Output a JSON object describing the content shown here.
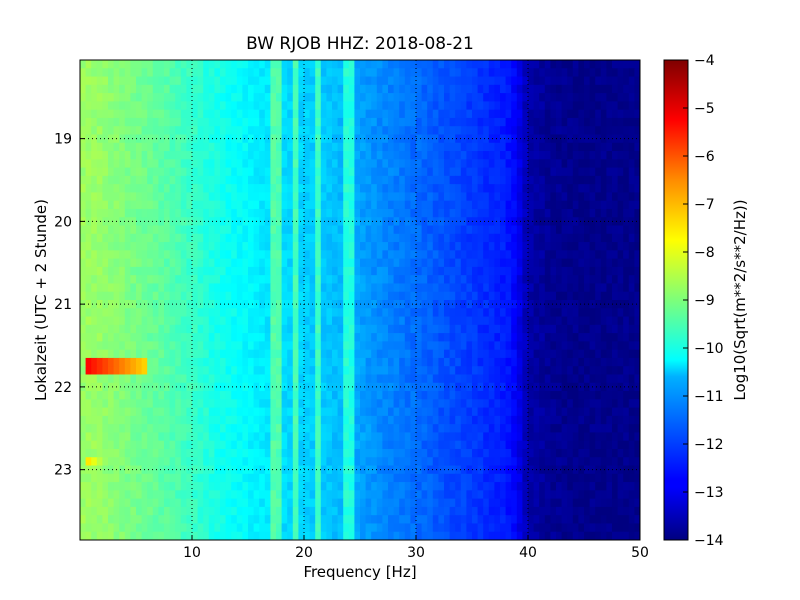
{
  "chart_data": {
    "type": "heatmap",
    "title": "BW RJOB HHZ: 2018-08-21",
    "xlabel": "Frequency [Hz]",
    "ylabel": "Lokalzeit (UTC + 2 Stunde)",
    "xlim": [
      0,
      50
    ],
    "ylim": [
      18.05,
      23.85
    ],
    "x_ticks": [
      10,
      20,
      30,
      40,
      50
    ],
    "y_ticks": [
      19,
      20,
      21,
      22,
      23
    ],
    "y_inverted": true,
    "grid": true,
    "colormap": "jet",
    "colorbar": {
      "label": "Log10(Sqrt(m**2/s**2/Hz))",
      "range": [
        -14,
        -4
      ],
      "ticks": [
        -4,
        -5,
        -6,
        -7,
        -8,
        -9,
        -10,
        -11,
        -12,
        -13,
        -14
      ]
    },
    "spectral_profile": {
      "frequency_hz": [
        0,
        2,
        4,
        6,
        8,
        10,
        12,
        14,
        16,
        18,
        20,
        22,
        24,
        26,
        28,
        30,
        32,
        34,
        36,
        38,
        39,
        40,
        42,
        44,
        46,
        48,
        50
      ],
      "log10_amplitude": [
        -8.7,
        -8.8,
        -9.0,
        -9.2,
        -9.4,
        -9.7,
        -10.0,
        -10.2,
        -10.4,
        -10.6,
        -10.7,
        -10.8,
        -11.0,
        -11.3,
        -11.5,
        -11.7,
        -11.9,
        -12.1,
        -12.3,
        -12.5,
        -12.8,
        -13.6,
        -13.8,
        -13.9,
        -13.9,
        -13.9,
        -13.9
      ]
    },
    "persistent_lines_hz": [
      17.6,
      19.3,
      21.2,
      24.0
    ],
    "transient_events": [
      {
        "time": 21.75,
        "freq_range_hz": [
          0.5,
          6.0
        ],
        "log10_amplitude": -5.2
      },
      {
        "time": 22.87,
        "freq_range_hz": [
          0.5,
          3.0
        ],
        "log10_amplitude": -7.3
      }
    ]
  }
}
